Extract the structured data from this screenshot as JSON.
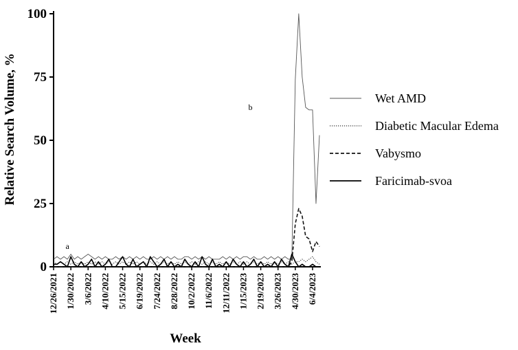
{
  "chart_data": {
    "type": "line",
    "xlabel": "Week",
    "ylabel": "Relative Search Volume, %",
    "ylim": [
      0,
      100
    ],
    "yticks": [
      0,
      25,
      50,
      75,
      100
    ],
    "xticks": [
      "12/26/2021",
      "1/30/2022",
      "3/6/2022",
      "4/10/2022",
      "5/15/2022",
      "6/19/2022",
      "7/24/2022",
      "8/28/2022",
      "10/2/2022",
      "11/6/2022",
      "12/11/2022",
      "1/15/2023",
      "2/19/2023",
      "3/26/2023",
      "4/30/2023",
      "6/4/2023"
    ],
    "week_count": 78,
    "legend_position": "right",
    "annotations": [
      {
        "text": "a",
        "week": 4,
        "value": 7
      },
      {
        "text": "b",
        "week": 57,
        "value": 62
      }
    ],
    "series": [
      {
        "name": "Wet AMD",
        "style": "solid-thin",
        "color": "#555555",
        "values": [
          3,
          4,
          3,
          4,
          3,
          5,
          3,
          4,
          3,
          4,
          5,
          4,
          3,
          4,
          3,
          4,
          3,
          3,
          4,
          3,
          4,
          3,
          4,
          3,
          4,
          3,
          4,
          3,
          3,
          4,
          3,
          4,
          3,
          4,
          3,
          4,
          3,
          3,
          4,
          4,
          3,
          4,
          3,
          4,
          3,
          4,
          3,
          3,
          3,
          4,
          3,
          4,
          3,
          4,
          3,
          4,
          4,
          3,
          4,
          3,
          3,
          4,
          3,
          4,
          3,
          4,
          3,
          4,
          3,
          3,
          74,
          100,
          75,
          63,
          62,
          62,
          25,
          52
        ]
      },
      {
        "name": "Diabetic Macular Edema",
        "style": "dotted",
        "color": "#333333",
        "values": [
          2,
          1,
          2,
          1,
          2,
          1,
          2,
          1,
          2,
          1,
          2,
          1,
          2,
          1,
          2,
          1,
          2,
          1,
          2,
          1,
          2,
          1,
          2,
          1,
          2,
          1,
          2,
          1,
          2,
          1,
          2,
          1,
          2,
          1,
          2,
          1,
          2,
          1,
          2,
          1,
          2,
          1,
          2,
          1,
          2,
          1,
          2,
          1,
          2,
          1,
          2,
          1,
          2,
          1,
          2,
          1,
          2,
          1,
          2,
          1,
          2,
          1,
          2,
          1,
          2,
          1,
          2,
          1,
          2,
          1,
          2,
          2,
          3,
          2,
          3,
          4,
          2,
          1
        ]
      },
      {
        "name": "Vabysmo",
        "style": "dashed",
        "color": "#111111",
        "values": [
          0,
          0,
          0,
          0,
          0,
          0,
          0,
          0,
          0,
          0,
          0,
          0,
          0,
          0,
          0,
          0,
          0,
          0,
          0,
          0,
          0,
          0,
          0,
          0,
          0,
          0,
          0,
          0,
          0,
          0,
          0,
          0,
          0,
          0,
          0,
          0,
          0,
          0,
          0,
          0,
          0,
          0,
          0,
          0,
          0,
          0,
          0,
          0,
          0,
          0,
          0,
          0,
          0,
          0,
          0,
          0,
          0,
          0,
          0,
          0,
          0,
          0,
          0,
          0,
          0,
          0,
          0,
          0,
          0,
          2,
          17,
          23,
          20,
          12,
          11,
          6,
          10,
          8
        ]
      },
      {
        "name": "Faricimab-svoa",
        "style": "solid-thick",
        "color": "#000000",
        "values": [
          1,
          1,
          2,
          1,
          0,
          4,
          1,
          0,
          2,
          0,
          1,
          3,
          0,
          2,
          0,
          1,
          3,
          0,
          0,
          2,
          4,
          1,
          0,
          3,
          0,
          1,
          2,
          0,
          4,
          2,
          0,
          1,
          3,
          0,
          2,
          0,
          1,
          0,
          3,
          1,
          0,
          2,
          0,
          4,
          1,
          0,
          3,
          0,
          1,
          0,
          2,
          0,
          3,
          1,
          0,
          2,
          0,
          1,
          3,
          0,
          2,
          0,
          1,
          0,
          2,
          0,
          3,
          1,
          0,
          5,
          2,
          0,
          1,
          0,
          0,
          1,
          0,
          0
        ]
      }
    ]
  }
}
